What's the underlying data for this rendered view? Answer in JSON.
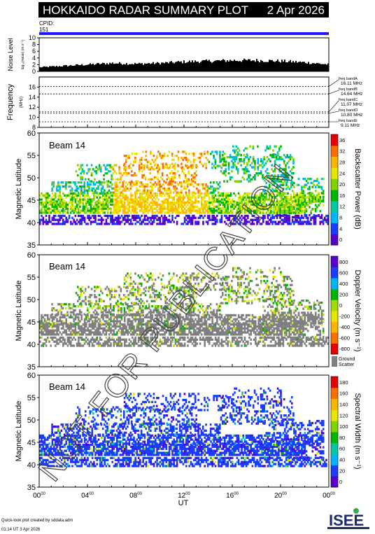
{
  "header": {
    "title": "HOKKAIDO RADAR SUMMARY PLOT",
    "date": "2 Apr 2026",
    "cpid_label": "CPID:",
    "cpid_value": "151"
  },
  "footer": {
    "line1": "Quick-look plot created by sddata.adm",
    "line2": "01:14 UT  3 Apr 2026",
    "logo_text": "ISEE"
  },
  "watermark": "NOT FOR PUBLICATION",
  "chart_data": [
    {
      "type": "area",
      "ylabel": "Noise Level",
      "ylabel_sub": "log₁₀(noise) (m s⁻¹)",
      "ylim": [
        0,
        10
      ],
      "yticks": [
        0,
        2,
        4,
        6,
        8,
        10
      ],
      "x": [
        0,
        2,
        4,
        6,
        8,
        10,
        12,
        14,
        16,
        18,
        20,
        22,
        24
      ],
      "values": [
        1.2,
        1.6,
        2.0,
        2.4,
        2.2,
        2.4,
        2.8,
        3.0,
        3.2,
        3.2,
        3.0,
        2.6,
        2.0
      ]
    },
    {
      "type": "line",
      "ylabel": "Frequency",
      "ylabel_sub": "(MHz)",
      "ylim": [
        8,
        18
      ],
      "yticks": [
        8,
        10,
        12,
        14,
        16
      ],
      "bands": [
        {
          "name": "freq bandA",
          "value": "16.11 MHz",
          "mhz": 16.11
        },
        {
          "name": "freq bandB",
          "value": "14.64 MHz",
          "mhz": 14.64
        },
        {
          "name": "freq bandC",
          "value": "11.07 MHz",
          "mhz": 11.07
        },
        {
          "name": "freq bandD",
          "value": "10.80 MHz",
          "mhz": 10.8
        },
        {
          "name": "freq bandE",
          "value": "9.11 MHz",
          "mhz": 9.11
        }
      ]
    },
    {
      "type": "heatmap",
      "beam_label": "Beam 14",
      "ylabel": "Magnetic Latitude",
      "ylim": [
        35,
        60
      ],
      "yticks": [
        35,
        40,
        45,
        50,
        55,
        60
      ],
      "colorbar_label": "Backscatter Power (dB)",
      "colorbar_ticks": [
        "0",
        "4",
        "8",
        "12",
        "16",
        "20",
        "24",
        "28",
        "32",
        "36"
      ],
      "colors": [
        "#5a00c8",
        "#1a3cff",
        "#00b4ff",
        "#00c8a0",
        "#00b400",
        "#82d200",
        "#e6e600",
        "#ffb400",
        "#ff6e00",
        "#e60000"
      ]
    },
    {
      "type": "heatmap",
      "beam_label": "Beam 14",
      "ylabel": "Magnetic Latitude",
      "ylim": [
        35,
        60
      ],
      "yticks": [
        35,
        40,
        45,
        50,
        55,
        60
      ],
      "colorbar_label": "Doppler Velocity (m s⁻¹)",
      "colorbar_ticks": [
        "-800",
        "-600",
        "-400",
        "-200",
        "0",
        "200",
        "400",
        "600",
        "800"
      ],
      "colors": [
        "#e60000",
        "#ff6e00",
        "#ffb400",
        "#e6e600",
        "#a0dc00",
        "#00b400",
        "#00b4ff",
        "#1a3cff",
        "#5a00c8"
      ],
      "ground_scatter_label": [
        "Ground",
        "Scatter"
      ],
      "ground_scatter_color": "#808080"
    },
    {
      "type": "heatmap",
      "beam_label": "Beam 14",
      "ylabel": "Magnetic Latitude",
      "ylim": [
        35,
        60
      ],
      "yticks": [
        35,
        40,
        45,
        50,
        55,
        60
      ],
      "colorbar_label": "Spectral Width (m s⁻¹)",
      "colorbar_ticks": [
        "0",
        "20",
        "40",
        "60",
        "80",
        "100",
        "120",
        "140",
        "160",
        "180"
      ],
      "colors": [
        "#5a00c8",
        "#1a3cff",
        "#00b4ff",
        "#00c8a0",
        "#00b400",
        "#82d200",
        "#e6e600",
        "#ffb400",
        "#ff6e00",
        "#e60000"
      ]
    }
  ],
  "xaxis": {
    "label": "UT",
    "ticks": [
      {
        "hh": "00",
        "mm": "00",
        "hour": 0
      },
      {
        "hh": "04",
        "mm": "00",
        "hour": 4
      },
      {
        "hh": "08",
        "mm": "00",
        "hour": 8
      },
      {
        "hh": "12",
        "mm": "00",
        "hour": 12
      },
      {
        "hh": "16",
        "mm": "00",
        "hour": 16
      },
      {
        "hh": "20",
        "mm": "00",
        "hour": 20
      },
      {
        "hh": "00",
        "mm": "00",
        "hour": 24
      }
    ]
  }
}
